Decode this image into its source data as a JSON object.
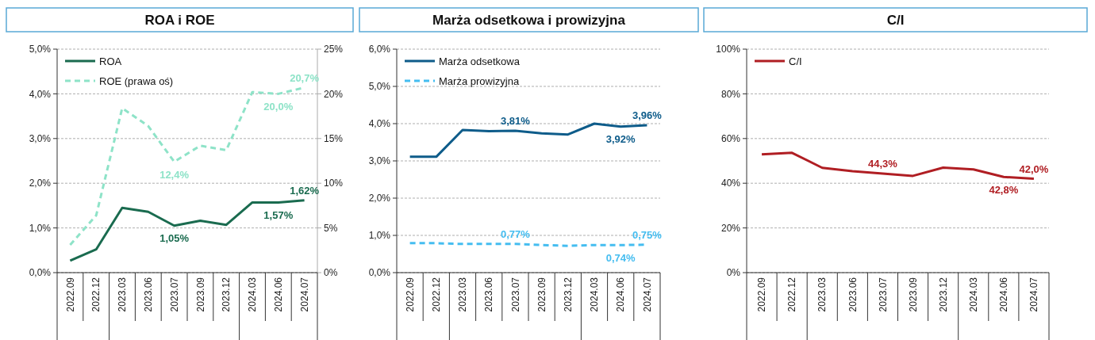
{
  "chart_data": [
    {
      "type": "line",
      "title": "ROA i ROE",
      "categories": [
        "2022.09",
        "2022.12",
        "2023.03",
        "2023.06",
        "2023.07",
        "2023.09",
        "2023.12",
        "2024.03",
        "2024.06",
        "2024.07"
      ],
      "series": [
        {
          "name": "ROA",
          "color": "#1a6b4f",
          "line_style": "solid",
          "values": [
            0.27,
            0.52,
            1.45,
            1.36,
            1.05,
            1.16,
            1.07,
            1.57,
            1.57,
            1.62
          ],
          "value_labels": [
            null,
            null,
            null,
            null,
            "1,05%",
            null,
            null,
            null,
            "1,57%",
            "1,62%"
          ]
        },
        {
          "name": "ROE (prawa oś)",
          "color": "#8ee3c8",
          "line_style": "dashed",
          "axis": "y2",
          "values": [
            3.1,
            6.4,
            18.4,
            16.4,
            12.4,
            14.2,
            13.7,
            20.2,
            20.0,
            20.7
          ],
          "value_labels": [
            null,
            null,
            null,
            null,
            "12,4%",
            null,
            null,
            null,
            "20,0%",
            "20,7%"
          ]
        }
      ],
      "ylim": [
        0,
        5
      ],
      "yticks": [
        {
          "value": 0,
          "label": "0,0%"
        },
        {
          "value": 1,
          "label": "1,0%"
        },
        {
          "value": 2,
          "label": "2,0%"
        },
        {
          "value": 3,
          "label": "3,0%"
        },
        {
          "value": 4,
          "label": "4,0%"
        },
        {
          "value": 5,
          "label": "5,0%"
        }
      ],
      "y2lim": [
        0,
        25
      ],
      "y2ticks": [
        {
          "value": 0,
          "label": "0%"
        },
        {
          "value": 5,
          "label": "5%"
        },
        {
          "value": 10,
          "label": "10%"
        },
        {
          "value": 15,
          "label": "15%"
        },
        {
          "value": 20,
          "label": "20%"
        },
        {
          "value": 25,
          "label": "25%"
        }
      ],
      "grid": "y",
      "legend": "top left"
    },
    {
      "type": "line",
      "title": "Marża odsetkowa i prowizyjna",
      "categories": [
        "2022.09",
        "2022.12",
        "2023.03",
        "2023.06",
        "2023.07",
        "2023.09",
        "2023.12",
        "2024.03",
        "2024.06",
        "2024.07"
      ],
      "series": [
        {
          "name": "Marża odsetkowa",
          "color": "#0e5c8a",
          "line_style": "solid",
          "values": [
            3.11,
            3.11,
            3.83,
            3.8,
            3.81,
            3.74,
            3.71,
            4.0,
            3.92,
            3.96
          ],
          "value_labels": [
            null,
            null,
            null,
            null,
            "3,81%",
            null,
            null,
            null,
            "3,92%",
            "3,96%"
          ]
        },
        {
          "name": "Marża prowizyjna",
          "color": "#45bdf0",
          "line_style": "dashed",
          "values": [
            0.79,
            0.79,
            0.77,
            0.77,
            0.77,
            0.74,
            0.72,
            0.74,
            0.74,
            0.75
          ],
          "value_labels": [
            null,
            null,
            null,
            null,
            "0,77%",
            null,
            null,
            null,
            "0,74%",
            "0,75%"
          ]
        }
      ],
      "ylim": [
        0,
        6
      ],
      "yticks": [
        {
          "value": 0,
          "label": "0,0%"
        },
        {
          "value": 1,
          "label": "1,0%"
        },
        {
          "value": 2,
          "label": "2,0%"
        },
        {
          "value": 3,
          "label": "3,0%"
        },
        {
          "value": 4,
          "label": "4,0%"
        },
        {
          "value": 5,
          "label": "5,0%"
        },
        {
          "value": 6,
          "label": "6,0%"
        }
      ],
      "grid": "y",
      "legend": "top left"
    },
    {
      "type": "line",
      "title": "C/I",
      "categories": [
        "2022.09",
        "2022.12",
        "2023.03",
        "2023.06",
        "2023.07",
        "2023.09",
        "2023.12",
        "2024.03",
        "2024.06",
        "2024.07"
      ],
      "series": [
        {
          "name": "C/I",
          "color": "#b01e23",
          "line_style": "solid",
          "values": [
            52.9,
            53.6,
            46.9,
            45.4,
            44.3,
            43.3,
            47.0,
            46.2,
            42.8,
            42.0
          ],
          "value_labels": [
            null,
            null,
            null,
            null,
            "44,3%",
            null,
            null,
            null,
            "42,8%",
            "42,0%"
          ]
        }
      ],
      "ylim": [
        0,
        100
      ],
      "yticks": [
        {
          "value": 0,
          "label": "0%"
        },
        {
          "value": 20,
          "label": "20%"
        },
        {
          "value": 40,
          "label": "40%"
        },
        {
          "value": 60,
          "label": "60%"
        },
        {
          "value": 80,
          "label": "80%"
        },
        {
          "value": 100,
          "label": "100%"
        }
      ],
      "grid": "y",
      "legend": "top left"
    }
  ]
}
